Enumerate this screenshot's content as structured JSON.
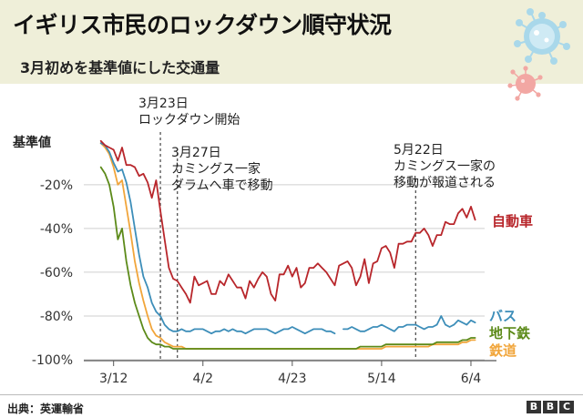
{
  "header": {
    "title": "イギリス市民のロックダウン順守状況",
    "subtitle": "3月初めを基準値にした交通量"
  },
  "footer": {
    "source": "出典：英運輸省",
    "logo_letters": [
      "B",
      "B",
      "C"
    ]
  },
  "colors": {
    "header_bg": "#efefd9",
    "car": "#b8262b",
    "bus": "#3d8eb9",
    "tube": "#5c8a19",
    "rail": "#f1a53a"
  },
  "chart_data": {
    "type": "line",
    "ylabel": "基準値",
    "y_ticks": [
      {
        "value": -20,
        "label": "-20%"
      },
      {
        "value": -40,
        "label": "-40%"
      },
      {
        "value": -60,
        "label": "-60%"
      },
      {
        "value": -80,
        "label": "-80%"
      },
      {
        "value": -100,
        "label": "-100%"
      }
    ],
    "ylim": [
      -100,
      2
    ],
    "x_ticks": [
      {
        "value": "2020-03-12",
        "label": "3/12"
      },
      {
        "value": "2020-04-02",
        "label": "4/2"
      },
      {
        "value": "2020-04-23",
        "label": "4/23"
      },
      {
        "value": "2020-05-14",
        "label": "5/14"
      },
      {
        "value": "2020-06-04",
        "label": "6/4"
      }
    ],
    "xlim": [
      "2020-03-05",
      "2020-06-10"
    ],
    "grid": true,
    "annotations": [
      {
        "date": "2020-03-23",
        "lines": [
          "3月23日",
          "ロックダウン開始"
        ]
      },
      {
        "date": "2020-03-27",
        "lines": [
          "3月27日",
          "カミングス一家",
          "ダラムへ車で移動"
        ]
      },
      {
        "date": "2020-05-22",
        "lines": [
          "5月22日",
          "カミングス一家の",
          "移動が報道される"
        ]
      }
    ],
    "series": [
      {
        "name": "自動車",
        "color": "#b8262b",
        "x": [
          "2020-03-09",
          "2020-03-10",
          "2020-03-11",
          "2020-03-12",
          "2020-03-13",
          "2020-03-14",
          "2020-03-15",
          "2020-03-16",
          "2020-03-17",
          "2020-03-18",
          "2020-03-19",
          "2020-03-20",
          "2020-03-21",
          "2020-03-22",
          "2020-03-23",
          "2020-03-24",
          "2020-03-25",
          "2020-03-26",
          "2020-03-27",
          "2020-03-28",
          "2020-03-29",
          "2020-03-30",
          "2020-03-31",
          "2020-04-01",
          "2020-04-02",
          "2020-04-03",
          "2020-04-04",
          "2020-04-05",
          "2020-04-06",
          "2020-04-07",
          "2020-04-08",
          "2020-04-09",
          "2020-04-10",
          "2020-04-11",
          "2020-04-12",
          "2020-04-13",
          "2020-04-14",
          "2020-04-15",
          "2020-04-16",
          "2020-04-17",
          "2020-04-18",
          "2020-04-19",
          "2020-04-20",
          "2020-04-21",
          "2020-04-22",
          "2020-04-23",
          "2020-04-24",
          "2020-04-25",
          "2020-04-26",
          "2020-04-27",
          "2020-04-28",
          "2020-04-29",
          "2020-04-30",
          "2020-05-01",
          "2020-05-02",
          "2020-05-03",
          "2020-05-04",
          "2020-05-05",
          "2020-05-06",
          "2020-05-07",
          "2020-05-08",
          "2020-05-09",
          "2020-05-10",
          "2020-05-11",
          "2020-05-12",
          "2020-05-13",
          "2020-05-14",
          "2020-05-15",
          "2020-05-16",
          "2020-05-17",
          "2020-05-18",
          "2020-05-19",
          "2020-05-20",
          "2020-05-21",
          "2020-05-22",
          "2020-05-23",
          "2020-05-24",
          "2020-05-25",
          "2020-05-26",
          "2020-05-27",
          "2020-05-28",
          "2020-05-29",
          "2020-05-30",
          "2020-05-31",
          "2020-06-01",
          "2020-06-02",
          "2020-06-03",
          "2020-06-04",
          "2020-06-05"
        ],
        "values": [
          0,
          -2,
          -3,
          -4,
          -9,
          -3,
          -11,
          -11,
          -12,
          -16,
          -15,
          -19,
          -26,
          -18,
          -32,
          -45,
          -58,
          -63,
          -64,
          -67,
          -70,
          -74,
          -62,
          -66,
          -65,
          -64,
          -70,
          -70,
          -64,
          -66,
          -61,
          -64,
          -67,
          -67,
          -72,
          -64,
          -67,
          -63,
          -60,
          -62,
          -70,
          -73,
          -61,
          -61,
          -57,
          -62,
          -58,
          -67,
          -65,
          -58,
          -58,
          -56,
          -58,
          -60,
          -63,
          -66,
          -57,
          -56,
          -55,
          -58,
          -66,
          -62,
          -54,
          -65,
          -56,
          -55,
          -49,
          -48,
          -51,
          -58,
          -47,
          -47,
          -46,
          -46,
          -42,
          -42,
          -40,
          -43,
          -48,
          -43,
          -43,
          -37,
          -38,
          -38,
          -33,
          -31,
          -35,
          -30,
          -36
        ]
      },
      {
        "name": "バス",
        "color": "#3d8eb9",
        "x": [
          "2020-03-09",
          "2020-03-10",
          "2020-03-11",
          "2020-03-12",
          "2020-03-13",
          "2020-03-14",
          "2020-03-15",
          "2020-03-16",
          "2020-03-17",
          "2020-03-18",
          "2020-03-19",
          "2020-03-20",
          "2020-03-21",
          "2020-03-22",
          "2020-03-23",
          "2020-03-24",
          "2020-03-25",
          "2020-03-26",
          "2020-03-27",
          "2020-03-28",
          "2020-03-29",
          "2020-03-30",
          "2020-03-31",
          "2020-04-01",
          "2020-04-02",
          "2020-04-03",
          "2020-04-04",
          "2020-04-05",
          "2020-04-06",
          "2020-04-07",
          "2020-04-08",
          "2020-04-09",
          "2020-04-10",
          "2020-04-11",
          "2020-04-12",
          "2020-04-13",
          "2020-04-14",
          "2020-04-15",
          "2020-04-16",
          "2020-04-17",
          "2020-04-18",
          "2020-04-19",
          "2020-04-20",
          "2020-04-21",
          "2020-04-22",
          "2020-04-23",
          "2020-04-24",
          "2020-04-25",
          "2020-04-26",
          "2020-04-27",
          "2020-04-28",
          "2020-04-29",
          "2020-04-30",
          "2020-05-01",
          "2020-05-02",
          "2020-05-03",
          "2020-05-04",
          "2020-05-05",
          "2020-05-06",
          "2020-05-07",
          "2020-05-08",
          "2020-05-09",
          "2020-05-10",
          "2020-05-11",
          "2020-05-12",
          "2020-05-13",
          "2020-05-14",
          "2020-05-15",
          "2020-05-16",
          "2020-05-17",
          "2020-05-18",
          "2020-05-19",
          "2020-05-20",
          "2020-05-21",
          "2020-05-22",
          "2020-05-23",
          "2020-05-24",
          "2020-05-25",
          "2020-05-26",
          "2020-05-27",
          "2020-05-28",
          "2020-05-29",
          "2020-05-30",
          "2020-05-31",
          "2020-06-01",
          "2020-06-02",
          "2020-06-03",
          "2020-06-04",
          "2020-06-05"
        ],
        "values": [
          -1,
          -2,
          -5,
          -10,
          -14,
          -13,
          -19,
          -28,
          -40,
          -52,
          -62,
          -67,
          -74,
          -78,
          -80,
          -84,
          -86,
          -87,
          -87,
          -86,
          -87,
          -87,
          -86,
          -86,
          -86,
          -87,
          -88,
          -87,
          -87,
          -86,
          -87,
          -86,
          -87,
          -87,
          -88,
          -87,
          -86,
          -86,
          -86,
          -86,
          -87,
          -88,
          -87,
          -86,
          -86,
          -85,
          -86,
          -87,
          -88,
          -87,
          -86,
          -86,
          -86,
          -87,
          -87,
          -88,
          null,
          -86,
          -86,
          -85,
          -86,
          -87,
          -87,
          -86,
          -85,
          -85,
          -84,
          -85,
          -86,
          -87,
          -85,
          -85,
          -84,
          -84,
          -84,
          -85,
          -86,
          -85,
          -85,
          -84,
          -80,
          -84,
          -85,
          -84,
          -82,
          -83,
          -84,
          -82,
          -83
        ]
      },
      {
        "name": "地下鉄",
        "color": "#5c8a19",
        "x": [
          "2020-03-09",
          "2020-03-10",
          "2020-03-11",
          "2020-03-12",
          "2020-03-13",
          "2020-03-14",
          "2020-03-15",
          "2020-03-16",
          "2020-03-17",
          "2020-03-18",
          "2020-03-19",
          "2020-03-20",
          "2020-03-21",
          "2020-03-22",
          "2020-03-23",
          "2020-03-24",
          "2020-03-25",
          "2020-03-26",
          "2020-03-27",
          "2020-03-28",
          "2020-03-29",
          "2020-03-30",
          "2020-03-31",
          "2020-04-01",
          "2020-04-02",
          "2020-04-03",
          "2020-04-04",
          "2020-04-05",
          "2020-04-06",
          "2020-04-07",
          "2020-04-08",
          "2020-04-09",
          "2020-04-10",
          "2020-04-11",
          "2020-04-12",
          "2020-04-13",
          "2020-04-14",
          "2020-04-15",
          "2020-04-16",
          "2020-04-17",
          "2020-04-18",
          "2020-04-19",
          "2020-04-20",
          "2020-04-21",
          "2020-04-22",
          "2020-04-23",
          "2020-04-24",
          "2020-04-25",
          "2020-04-26",
          "2020-04-27",
          "2020-04-28",
          "2020-04-29",
          "2020-04-30",
          "2020-05-01",
          "2020-05-02",
          "2020-05-03",
          "2020-05-04",
          "2020-05-05",
          "2020-05-06",
          "2020-05-07",
          "2020-05-08",
          "2020-05-09",
          "2020-05-10",
          "2020-05-11",
          "2020-05-12",
          "2020-05-13",
          "2020-05-14",
          "2020-05-15",
          "2020-05-16",
          "2020-05-17",
          "2020-05-18",
          "2020-05-19",
          "2020-05-20",
          "2020-05-21",
          "2020-05-22",
          "2020-05-23",
          "2020-05-24",
          "2020-05-25",
          "2020-05-26",
          "2020-05-27",
          "2020-05-28",
          "2020-05-29",
          "2020-05-30",
          "2020-05-31",
          "2020-06-01",
          "2020-06-02",
          "2020-06-03",
          "2020-06-04",
          "2020-06-05"
        ],
        "values": [
          -12,
          -15,
          -20,
          -30,
          -45,
          -40,
          -55,
          -66,
          -74,
          -80,
          -86,
          -90,
          -92,
          -93,
          -93,
          -94,
          -94,
          -95,
          -95,
          -95,
          -95,
          -95,
          -95,
          -95,
          -95,
          -95,
          -95,
          -95,
          -95,
          -95,
          -95,
          -95,
          -95,
          -95,
          -95,
          -95,
          -95,
          -95,
          -95,
          -95,
          -95,
          -95,
          -95,
          -95,
          -95,
          -95,
          -95,
          -95,
          -95,
          -95,
          -95,
          -95,
          -95,
          -95,
          -95,
          -95,
          -95,
          -95,
          -95,
          -95,
          -95,
          -94,
          -94,
          -94,
          -94,
          -94,
          -94,
          -93,
          -93,
          -93,
          -93,
          -93,
          -93,
          -93,
          -93,
          -93,
          -93,
          -93,
          -93,
          -92,
          -92,
          -92,
          -92,
          -92,
          -92,
          -91,
          -91,
          -90,
          -90
        ]
      },
      {
        "name": "鉄道",
        "color": "#f1a53a",
        "x": [
          "2020-03-09",
          "2020-03-10",
          "2020-03-11",
          "2020-03-12",
          "2020-03-13",
          "2020-03-14",
          "2020-03-15",
          "2020-03-16",
          "2020-03-17",
          "2020-03-18",
          "2020-03-19",
          "2020-03-20",
          "2020-03-21",
          "2020-03-22",
          "2020-03-23",
          "2020-03-24",
          "2020-03-25",
          "2020-03-26",
          "2020-03-27",
          "2020-03-28",
          "2020-03-29",
          "2020-03-30",
          "2020-03-31",
          "2020-04-01",
          "2020-04-02",
          "2020-04-03",
          "2020-04-04",
          "2020-04-05",
          "2020-04-06",
          "2020-04-07",
          "2020-04-08",
          "2020-04-09",
          "2020-04-10",
          "2020-04-11",
          "2020-04-12",
          "2020-04-13",
          "2020-04-14",
          "2020-04-15",
          "2020-04-16",
          "2020-04-17",
          "2020-04-18",
          "2020-04-19",
          "2020-04-20",
          "2020-04-21",
          "2020-04-22",
          "2020-04-23",
          "2020-04-24",
          "2020-04-25",
          "2020-04-26",
          "2020-04-27",
          "2020-04-28",
          "2020-04-29",
          "2020-04-30",
          "2020-05-01",
          "2020-05-02",
          "2020-05-03",
          "2020-05-04",
          "2020-05-05",
          "2020-05-06",
          "2020-05-07",
          "2020-05-08",
          "2020-05-09",
          "2020-05-10",
          "2020-05-11",
          "2020-05-12",
          "2020-05-13",
          "2020-05-14",
          "2020-05-15",
          "2020-05-16",
          "2020-05-17",
          "2020-05-18",
          "2020-05-19",
          "2020-05-20",
          "2020-05-21",
          "2020-05-22",
          "2020-05-23",
          "2020-05-24",
          "2020-05-25",
          "2020-05-26",
          "2020-05-27",
          "2020-05-28",
          "2020-05-29",
          "2020-05-30",
          "2020-05-31",
          "2020-06-01",
          "2020-06-02",
          "2020-06-03",
          "2020-06-04",
          "2020-06-05"
        ],
        "values": [
          -1,
          -3,
          -6,
          -12,
          -20,
          -18,
          -30,
          -42,
          -55,
          -65,
          -73,
          -80,
          -86,
          -89,
          -90,
          -92,
          -93,
          -94,
          -94,
          -94,
          -95,
          -95,
          -95,
          -95,
          -95,
          -95,
          -95,
          -95,
          -95,
          -95,
          -95,
          -95,
          -95,
          -95,
          -95,
          -95,
          -95,
          -95,
          -95,
          -95,
          -95,
          -95,
          -95,
          -95,
          -95,
          -95,
          -95,
          -95,
          -95,
          -95,
          -95,
          -95,
          -95,
          -95,
          -95,
          -95,
          -95,
          -95,
          -95,
          -95,
          -95,
          -95,
          -95,
          -95,
          -95,
          -95,
          -95,
          -94,
          -94,
          -94,
          -94,
          -94,
          -94,
          -94,
          -94,
          -94,
          -94,
          -94,
          -93,
          -93,
          -93,
          -93,
          -93,
          -93,
          -93,
          -92,
          -92,
          -91,
          -91
        ]
      }
    ]
  }
}
